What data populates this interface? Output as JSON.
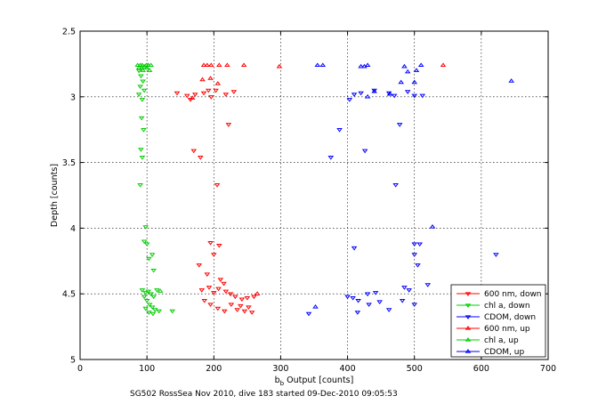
{
  "chart_data": {
    "type": "scatter",
    "xlabel_main": "b",
    "xlabel_sub": "b",
    "xlabel_rest": " Output [counts]",
    "ylabel": "Depth [counts]",
    "xlim": [
      0,
      700
    ],
    "ylim": [
      2.5,
      5
    ],
    "y_reversed": true,
    "grid": true,
    "legend_position": "bottom-right",
    "x_ticks": [
      0,
      100,
      200,
      300,
      400,
      500,
      600,
      700
    ],
    "y_ticks": [
      2.5,
      3,
      3.5,
      4,
      4.5,
      5
    ],
    "x_tick_labels": [
      "0",
      "100",
      "200",
      "300",
      "400",
      "500",
      "600",
      "700"
    ],
    "y_tick_labels": [
      "2.5",
      "3",
      "3.5",
      "4",
      "4.5",
      "5"
    ],
    "series": [
      {
        "name": "600 nm, down",
        "color": "#ff0000",
        "marker": "triangle-down",
        "points": [
          [
            145,
            2.97
          ],
          [
            160,
            2.99
          ],
          [
            165,
            3.02
          ],
          [
            172,
            2.98
          ],
          [
            185,
            2.97
          ],
          [
            192,
            2.95
          ],
          [
            203,
            2.95
          ],
          [
            196,
            3.0
          ],
          [
            218,
            2.98
          ],
          [
            230,
            2.96
          ],
          [
            222,
            3.21
          ],
          [
            170,
            3.41
          ],
          [
            180,
            3.46
          ],
          [
            205,
            3.67
          ],
          [
            195,
            4.11
          ],
          [
            208,
            4.13
          ],
          [
            200,
            4.2
          ],
          [
            178,
            4.28
          ],
          [
            190,
            4.35
          ],
          [
            210,
            4.39
          ],
          [
            215,
            4.42
          ],
          [
            182,
            4.47
          ],
          [
            193,
            4.45
          ],
          [
            200,
            4.49
          ],
          [
            207,
            4.46
          ],
          [
            218,
            4.48
          ],
          [
            225,
            4.5
          ],
          [
            232,
            4.52
          ],
          [
            242,
            4.54
          ],
          [
            250,
            4.53
          ],
          [
            260,
            4.52
          ],
          [
            186,
            4.55
          ],
          [
            195,
            4.58
          ],
          [
            206,
            4.61
          ],
          [
            216,
            4.63
          ],
          [
            226,
            4.58
          ],
          [
            235,
            4.62
          ],
          [
            240,
            4.59
          ],
          [
            246,
            4.63
          ],
          [
            252,
            4.6
          ],
          [
            257,
            4.64
          ]
        ]
      },
      {
        "name": "chl a, down",
        "color": "#00cc00",
        "marker": "triangle-down",
        "points": [
          [
            88,
            2.8
          ],
          [
            91,
            2.84
          ],
          [
            94,
            2.88
          ],
          [
            90,
            2.92
          ],
          [
            96,
            2.95
          ],
          [
            88,
            2.98
          ],
          [
            93,
            3.02
          ],
          [
            92,
            3.16
          ],
          [
            95,
            3.25
          ],
          [
            91,
            3.4
          ],
          [
            93,
            3.46
          ],
          [
            90,
            3.67
          ],
          [
            98,
            3.99
          ],
          [
            96,
            4.1
          ],
          [
            100,
            4.12
          ],
          [
            103,
            4.23
          ],
          [
            108,
            4.2
          ],
          [
            110,
            4.32
          ],
          [
            93,
            4.47
          ],
          [
            98,
            4.49
          ],
          [
            102,
            4.48
          ],
          [
            106,
            4.5
          ],
          [
            110,
            4.52
          ],
          [
            115,
            4.47
          ],
          [
            96,
            4.52
          ],
          [
            100,
            4.55
          ],
          [
            104,
            4.58
          ],
          [
            108,
            4.6
          ],
          [
            112,
            4.62
          ],
          [
            118,
            4.63
          ],
          [
            138,
            4.63
          ],
          [
            98,
            4.61
          ],
          [
            103,
            4.64
          ],
          [
            109,
            4.65
          ]
        ]
      },
      {
        "name": "CDOM, down",
        "color": "#0000ff",
        "marker": "triangle-down",
        "points": [
          [
            403,
            3.02
          ],
          [
            410,
            2.98
          ],
          [
            420,
            2.97
          ],
          [
            440,
            2.95
          ],
          [
            462,
            2.97
          ],
          [
            470,
            2.99
          ],
          [
            490,
            2.96
          ],
          [
            500,
            2.99
          ],
          [
            512,
            2.99
          ],
          [
            388,
            3.25
          ],
          [
            478,
            3.21
          ],
          [
            426,
            3.41
          ],
          [
            375,
            3.46
          ],
          [
            472,
            3.67
          ],
          [
            500,
            4.12
          ],
          [
            508,
            4.12
          ],
          [
            410,
            4.15
          ],
          [
            500,
            4.2
          ],
          [
            622,
            4.2
          ],
          [
            505,
            4.28
          ],
          [
            520,
            4.43
          ],
          [
            485,
            4.45
          ],
          [
            492,
            4.47
          ],
          [
            400,
            4.52
          ],
          [
            408,
            4.53
          ],
          [
            416,
            4.55
          ],
          [
            430,
            4.5
          ],
          [
            442,
            4.49
          ],
          [
            415,
            4.64
          ],
          [
            432,
            4.58
          ],
          [
            448,
            4.56
          ],
          [
            462,
            4.62
          ],
          [
            482,
            4.55
          ],
          [
            500,
            4.58
          ],
          [
            342,
            4.65
          ]
        ]
      },
      {
        "name": "600 nm, up",
        "color": "#ff0000",
        "marker": "triangle-up",
        "points": [
          [
            185,
            2.76
          ],
          [
            190,
            2.76
          ],
          [
            196,
            2.76
          ],
          [
            208,
            2.76
          ],
          [
            220,
            2.76
          ],
          [
            245,
            2.76
          ],
          [
            298,
            2.77
          ],
          [
            543,
            2.76
          ],
          [
            183,
            2.87
          ],
          [
            195,
            2.86
          ],
          [
            206,
            2.9
          ],
          [
            168,
            3.01
          ],
          [
            265,
            4.5
          ]
        ]
      },
      {
        "name": "chl a, up",
        "color": "#00cc00",
        "marker": "triangle-up",
        "points": [
          [
            86,
            2.76
          ],
          [
            90,
            2.76
          ],
          [
            93,
            2.76
          ],
          [
            96,
            2.77
          ],
          [
            99,
            2.76
          ],
          [
            102,
            2.76
          ],
          [
            106,
            2.76
          ],
          [
            88,
            2.78
          ],
          [
            92,
            2.78
          ],
          [
            100,
            2.78
          ],
          [
            94,
            2.8
          ],
          [
            104,
            2.8
          ],
          [
            120,
            4.48
          ]
        ]
      },
      {
        "name": "CDOM, up",
        "color": "#0000ff",
        "marker": "triangle-up",
        "points": [
          [
            355,
            2.76
          ],
          [
            363,
            2.76
          ],
          [
            420,
            2.77
          ],
          [
            425,
            2.77
          ],
          [
            430,
            2.76
          ],
          [
            485,
            2.77
          ],
          [
            490,
            2.81
          ],
          [
            503,
            2.8
          ],
          [
            510,
            2.76
          ],
          [
            480,
            2.89
          ],
          [
            500,
            2.89
          ],
          [
            645,
            2.88
          ],
          [
            463,
            2.98
          ],
          [
            440,
            2.96
          ],
          [
            430,
            3.0
          ],
          [
            527,
            3.99
          ],
          [
            352,
            4.6
          ]
        ]
      }
    ]
  },
  "footer": {
    "caption": "SG502 RossSea Nov 2010, dive 183 started 09-Dec-2010 09:05:53"
  }
}
